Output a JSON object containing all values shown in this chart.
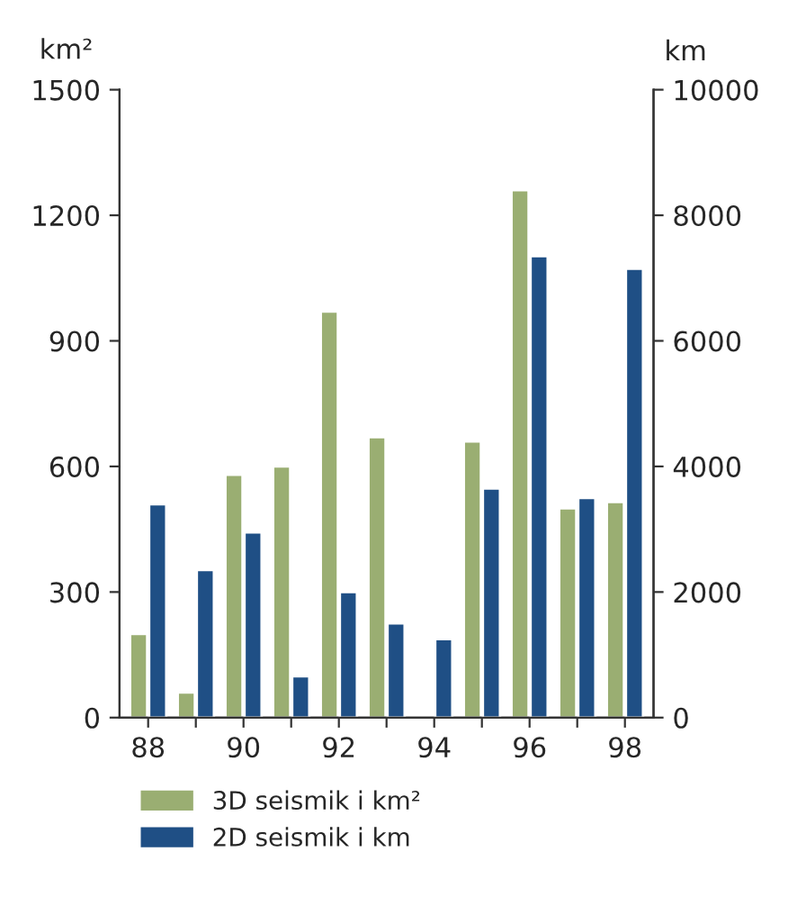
{
  "chart_data": {
    "type": "bar",
    "ylabel": "km²",
    "y2label": "km",
    "categories": [
      "88",
      null,
      "90",
      null,
      "92",
      null,
      "94",
      null,
      "96",
      null,
      "98"
    ],
    "series": [
      {
        "name": "3D seismik i km²",
        "color": "#9aae72",
        "values": [
          200,
          60,
          580,
          600,
          970,
          670,
          null,
          660,
          1260,
          500,
          515
        ]
      },
      {
        "name": "2D seismik i km",
        "color": "#1f4f85",
        "axis": "y2",
        "values": [
          3400,
          2350,
          2950,
          660,
          2000,
          1500,
          1250,
          3650,
          7350,
          3500,
          7150
        ]
      }
    ],
    "ylim": [
      0,
      1500
    ],
    "yticks": [
      0,
      300,
      600,
      900,
      1200,
      1500
    ],
    "y2lim": [
      0,
      10000
    ],
    "y2ticks": [
      0,
      2000,
      4000,
      6000,
      8000,
      10000
    ],
    "grid": false,
    "legend": "bottom"
  }
}
